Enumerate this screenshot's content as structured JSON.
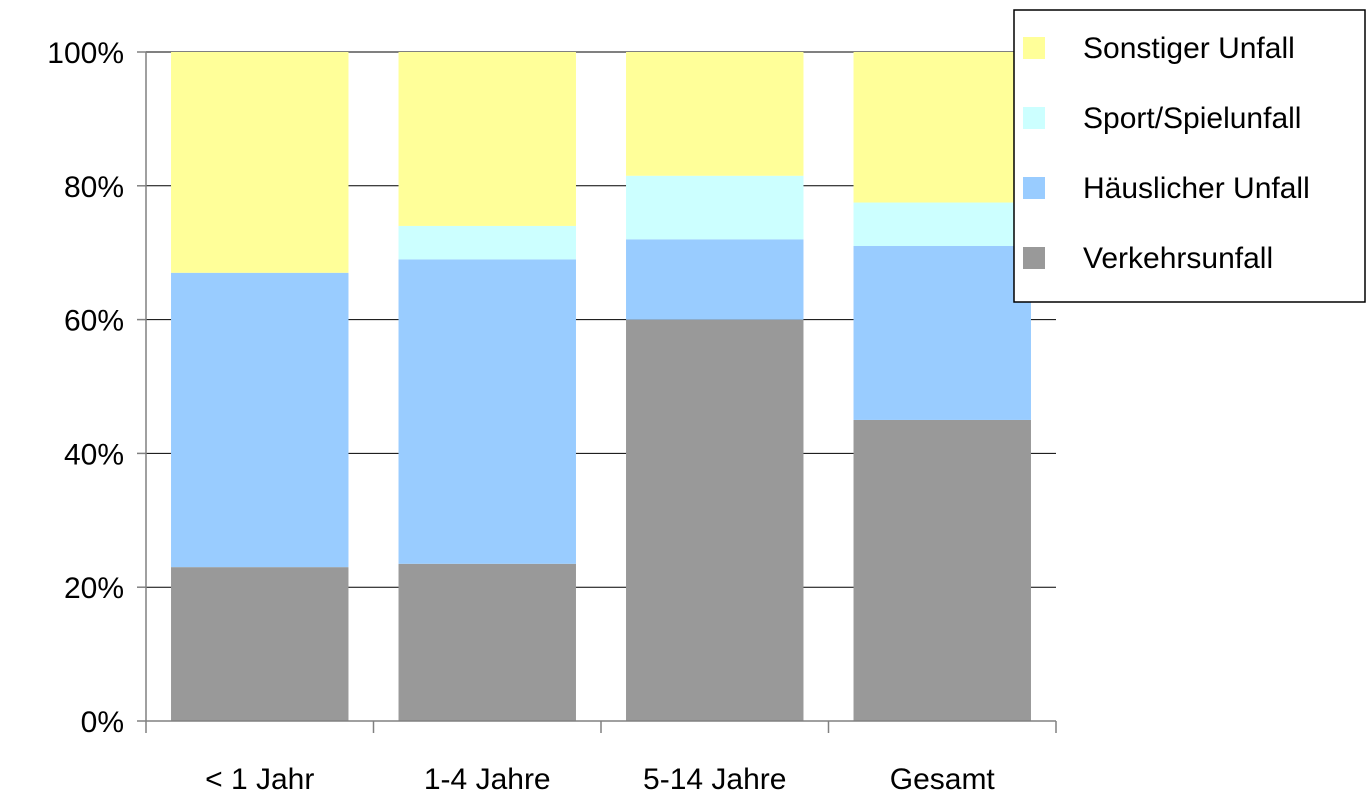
{
  "chart_data": {
    "type": "bar",
    "stacked": true,
    "percent": true,
    "categories": [
      "< 1 Jahr",
      "1-4 Jahre",
      "5-14 Jahre",
      "Gesamt"
    ],
    "series": [
      {
        "name": "Verkehrsunfall",
        "color": "#999999",
        "values": [
          23,
          23.5,
          60,
          45
        ]
      },
      {
        "name": "Häuslicher Unfall",
        "color": "#99CCFF",
        "values": [
          44,
          45.5,
          12,
          26
        ]
      },
      {
        "name": "Sport/Spielunfall",
        "color": "#CCFFFF",
        "values": [
          0,
          5,
          9.5,
          6.5
        ]
      },
      {
        "name": "Sonstiger Unfall",
        "color": "#FFFF99",
        "values": [
          33,
          26,
          18.5,
          22.5
        ]
      }
    ],
    "yticks": [
      "0%",
      "20%",
      "40%",
      "60%",
      "80%",
      "100%"
    ],
    "ylim": [
      0,
      100
    ],
    "grid": true,
    "legend_position": "top-right"
  }
}
